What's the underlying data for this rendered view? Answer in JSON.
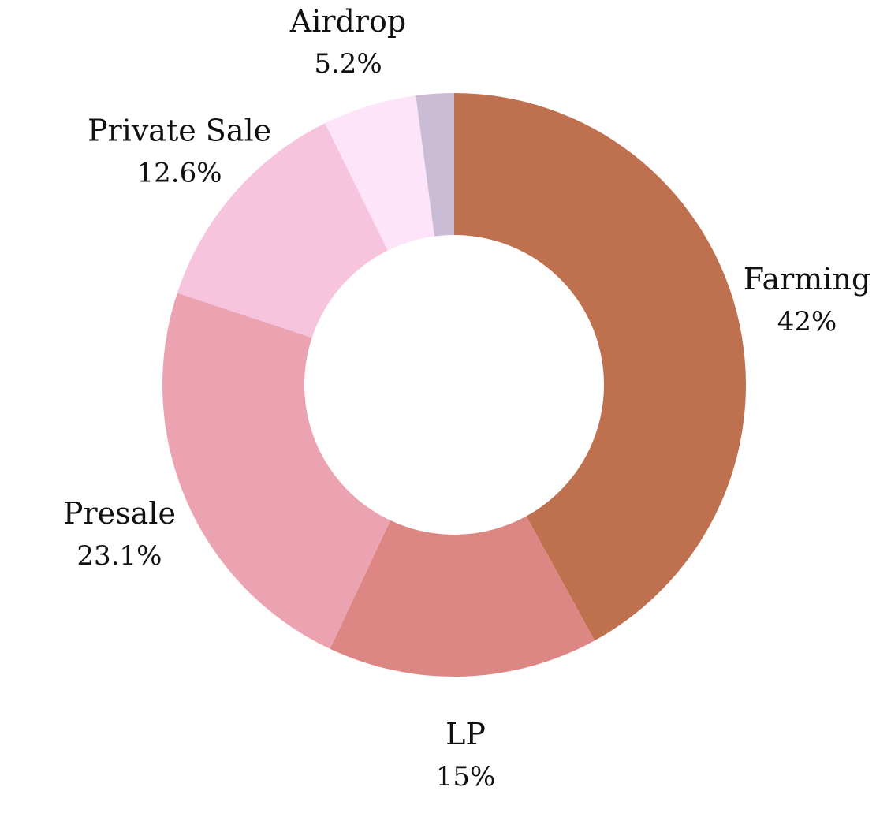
{
  "chart_data": {
    "type": "pie",
    "variant": "donut",
    "title": "",
    "slices": [
      {
        "label": "Farming",
        "pct_text": "42%",
        "value": 42.0,
        "color": "#bf714f"
      },
      {
        "label": "LP",
        "pct_text": "15%",
        "value": 15.0,
        "color": "#dc8783"
      },
      {
        "label": "Presale",
        "pct_text": "23.1%",
        "value": 23.1,
        "color": "#eca3b1"
      },
      {
        "label": "Private Sale",
        "pct_text": "12.6%",
        "value": 12.6,
        "color": "#f6c4dd"
      },
      {
        "label": "Airdrop",
        "pct_text": "5.2%",
        "value": 5.2,
        "color": "#fde4f9"
      },
      {
        "label": "",
        "pct_text": "",
        "value": 2.1,
        "color": "#cbbcd6"
      }
    ],
    "start_angle": "12 o'clock",
    "direction": "clockwise",
    "legend": "none"
  }
}
